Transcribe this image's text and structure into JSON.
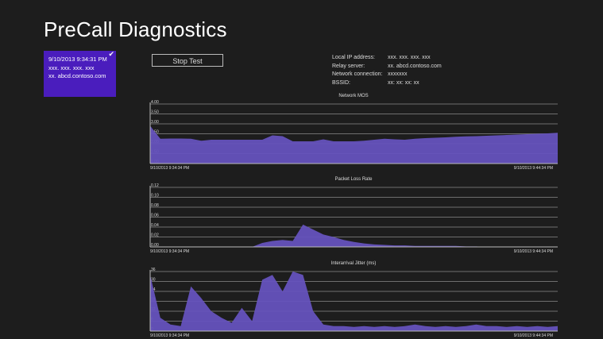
{
  "title": "PreCall Diagnostics",
  "session_tile": {
    "selected": true,
    "icon": "checkmark-icon",
    "timestamp": "9/10/2013 9:34:31 PM",
    "ip": "xxx. xxx. xxx. xxx",
    "server": "xx. abcd.contoso.com"
  },
  "stop_button_label": "Stop Test",
  "info": [
    {
      "label": "Local IP address:",
      "value": "xxx. xxx. xxx. xxx"
    },
    {
      "label": "Relay server:",
      "value": "xx. abcd.contoso.com"
    },
    {
      "label": "Network connection:",
      "value": "xxxxxxx"
    },
    {
      "label": "BSSID:",
      "value": "xx: xx: xx: xx"
    }
  ],
  "colors": {
    "background": "#1d1d1d",
    "accent": "#4a1dbd",
    "fill": "#6552bd"
  },
  "chart_data": [
    {
      "type": "area",
      "title": "Network MOS",
      "x_start_label": "9/10/2013 9:34:34 PM",
      "x_end_label": "9/10/2013 9:44:34 PM",
      "yticks": [
        "4.00",
        "3.50",
        "3.00",
        "2.50",
        "2.00",
        "1.50",
        "1.00"
      ],
      "ylim": [
        1.0,
        4.0
      ],
      "grid": true,
      "values": [
        2.9,
        2.25,
        2.26,
        2.26,
        2.25,
        2.15,
        2.2,
        2.2,
        2.2,
        2.2,
        2.2,
        2.2,
        2.42,
        2.38,
        2.12,
        2.12,
        2.12,
        2.22,
        2.12,
        2.12,
        2.12,
        2.15,
        2.2,
        2.25,
        2.22,
        2.2,
        2.25,
        2.28,
        2.3,
        2.32,
        2.35,
        2.37,
        2.38,
        2.4,
        2.42,
        2.44,
        2.46,
        2.48,
        2.5,
        2.52,
        2.55
      ]
    },
    {
      "type": "area",
      "title": "Packet Loss Rate",
      "x_start_label": "9/10/2013 9:34:34 PM",
      "x_end_label": "9/10/2013 9:44:34 PM",
      "yticks": [
        "0.12",
        "0.10",
        "0.08",
        "0.06",
        "0.04",
        "0.02",
        "0.00"
      ],
      "ylim": [
        0,
        0.12
      ],
      "grid": true,
      "values": [
        0,
        0,
        0,
        0,
        0,
        0,
        0,
        0,
        0,
        0,
        0,
        0.008,
        0.012,
        0.014,
        0.012,
        0.045,
        0.035,
        0.025,
        0.02,
        0.014,
        0.01,
        0.007,
        0.005,
        0.004,
        0.003,
        0.003,
        0.002,
        0.002,
        0.002,
        0.002,
        0.002,
        0.001,
        0.001,
        0,
        0,
        0,
        0,
        0,
        0,
        0,
        0
      ]
    },
    {
      "type": "area",
      "title": "Interarrival Jitter (ms)",
      "x_start_label": "9/10/2013 9:34:34 PM",
      "x_end_label": "9/10/2013 9:44:34 PM",
      "yticks": [
        "36",
        "30",
        "24",
        "18",
        "12",
        "6",
        "0"
      ],
      "ylim": [
        0,
        36
      ],
      "grid": true,
      "values": [
        34,
        8,
        4,
        3,
        27,
        20,
        12,
        8,
        5,
        14,
        6,
        31,
        34,
        24,
        36,
        34,
        12,
        4,
        3,
        3,
        2.5,
        3,
        2.5,
        3,
        2.5,
        3,
        4,
        3,
        2.5,
        3,
        2.5,
        3,
        4,
        3,
        3,
        2.5,
        3,
        2.5,
        3,
        2.5,
        3
      ]
    }
  ]
}
